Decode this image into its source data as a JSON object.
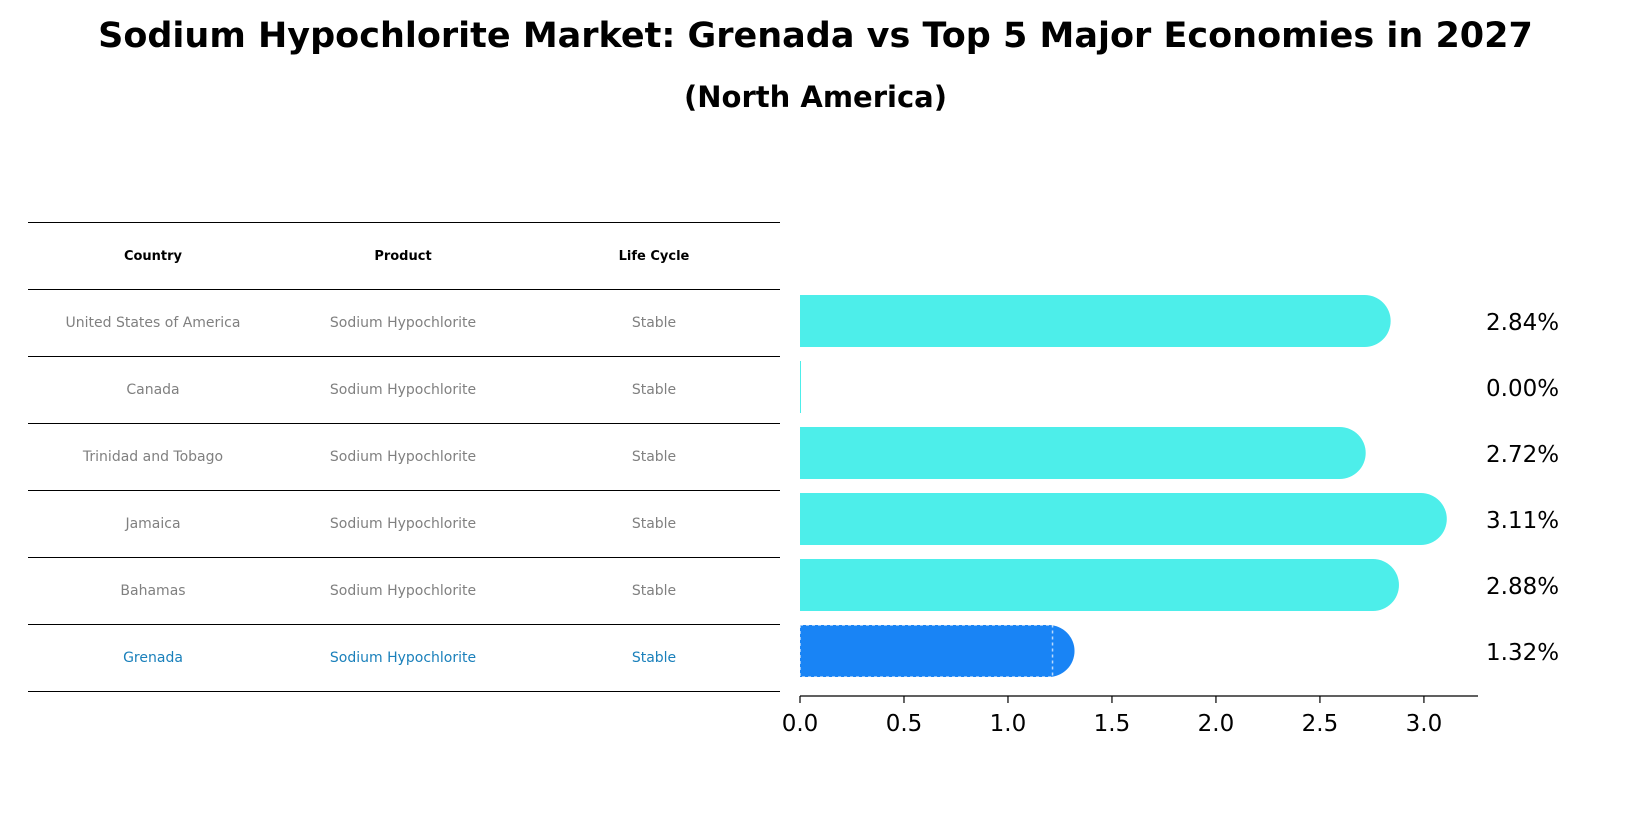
{
  "title": "Sodium Hypochlorite Market: Grenada vs Top 5 Major Economies in 2027",
  "subtitle": "(North America)",
  "table": {
    "headers": [
      "Country",
      "Product",
      "Life Cycle"
    ],
    "rows": [
      {
        "country": "United States of America",
        "product": "Sodium Hypochlorite",
        "life_cycle": "Stable"
      },
      {
        "country": "Canada",
        "product": "Sodium Hypochlorite",
        "life_cycle": "Stable"
      },
      {
        "country": "Trinidad and Tobago",
        "product": "Sodium Hypochlorite",
        "life_cycle": "Stable"
      },
      {
        "country": "Jamaica",
        "product": "Sodium Hypochlorite",
        "life_cycle": "Stable"
      },
      {
        "country": "Bahamas",
        "product": "Sodium Hypochlorite",
        "life_cycle": "Stable"
      },
      {
        "country": "Grenada",
        "product": "Sodium Hypochlorite",
        "life_cycle": "Stable"
      }
    ]
  },
  "colors": {
    "bar_default": "#4deeea",
    "bar_highlight": "#1984f5",
    "highlight_text": "#1a80bb",
    "muted_text": "#808080"
  },
  "chart_data": {
    "type": "bar",
    "orientation": "horizontal",
    "categories": [
      "United States of America",
      "Canada",
      "Trinidad and Tobago",
      "Jamaica",
      "Bahamas",
      "Grenada"
    ],
    "values": [
      2.84,
      0.0,
      2.72,
      3.11,
      2.88,
      1.32
    ],
    "value_labels": [
      "2.84%",
      "0.00%",
      "2.72%",
      "3.11%",
      "2.88%",
      "1.32%"
    ],
    "highlight": "Grenada",
    "xlim": [
      0,
      3.26
    ],
    "xticks": [
      0.0,
      0.5,
      1.0,
      1.5,
      2.0,
      2.5,
      3.0
    ],
    "xtick_labels": [
      "0.0",
      "0.5",
      "1.0",
      "1.5",
      "2.0",
      "2.5",
      "3.0"
    ]
  }
}
